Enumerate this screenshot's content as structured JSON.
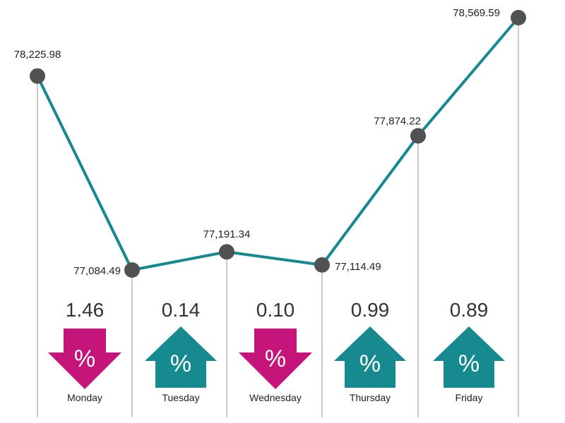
{
  "chart_data": {
    "type": "line",
    "x": [
      "",
      "Monday",
      "Tuesday",
      "Wednesday",
      "Thursday",
      "Friday"
    ],
    "values": [
      78225.98,
      77084.49,
      77191.34,
      77114.49,
      77874.22,
      78569.59
    ],
    "point_labels": [
      "78,225.98",
      "77,084.49",
      "77,191.34",
      "77,114.49",
      "77,874.22",
      "78,569.59"
    ],
    "days": [
      {
        "name": "Monday",
        "change": "1.46",
        "direction": "down"
      },
      {
        "name": "Tuesday",
        "change": "0.14",
        "direction": "up"
      },
      {
        "name": "Wednesday",
        "change": "0.10",
        "direction": "down"
      },
      {
        "name": "Thursday",
        "change": "0.99",
        "direction": "up"
      },
      {
        "name": "Friday",
        "change": "0.89",
        "direction": "up"
      }
    ],
    "arrow_symbol": "%",
    "colors": {
      "line": "#16898f",
      "marker": "#505153",
      "up": "#168a8f",
      "down": "#c5147a",
      "guide": "#9a9a9a"
    },
    "grid": false,
    "legend": "none"
  }
}
